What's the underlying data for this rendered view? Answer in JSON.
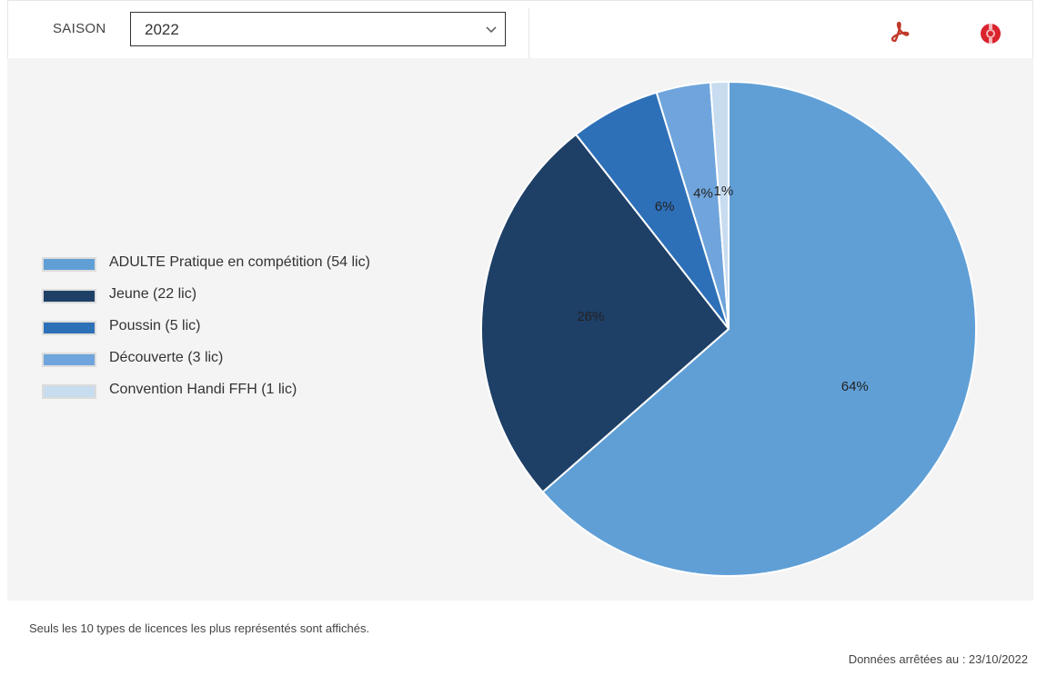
{
  "toolbar": {
    "season_label": "SAISON",
    "season_value": "2022",
    "pdf_icon": "pdf-icon",
    "help_icon": "help-icon",
    "pdf_color": "#c0392b",
    "help_color": "#d9232d"
  },
  "chart_data": {
    "type": "pie",
    "title": "",
    "categories": [
      "ADULTE Pratique en compétition (54 lic)",
      "Jeune (22 lic)",
      "Poussin (5 lic)",
      "Découverte (3 lic)",
      "Convention Handi FFH (1 lic)"
    ],
    "values": [
      54,
      22,
      5,
      3,
      1
    ],
    "percent_labels": [
      "64%",
      "26%",
      "6%",
      "4%",
      "1%"
    ],
    "colors": [
      "#609fd6",
      "#1e3f66",
      "#2e70b8",
      "#6fa5dc",
      "#c8dcf0"
    ],
    "legend_position": "left",
    "start_angle_deg": 0,
    "direction": "clockwise"
  },
  "footer": {
    "note": "Seuls les 10 types de licences les plus représentés sont affichés.",
    "date": "Données arrêtées au : 23/10/2022"
  }
}
